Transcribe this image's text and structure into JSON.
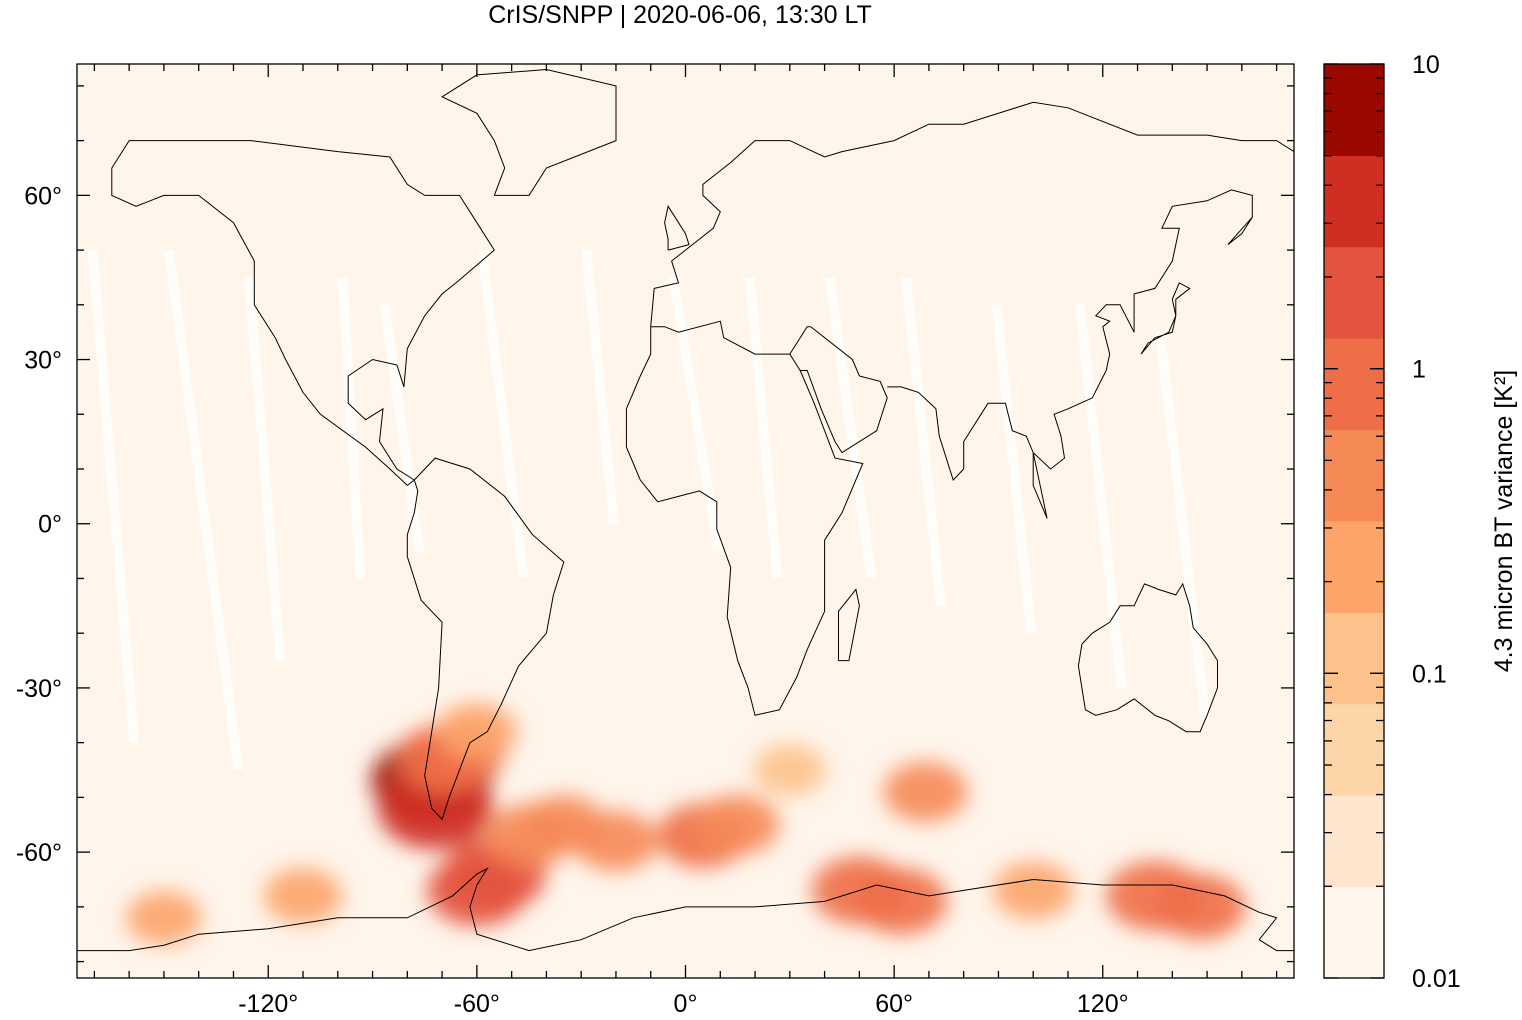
{
  "chart_data": {
    "type": "heatmap",
    "title": "CrIS/SNPP | 2020-06-06, 13:30 LT",
    "x_axis": {
      "range": [
        -175,
        175
      ],
      "ticks": [
        -120,
        -60,
        0,
        60,
        120
      ],
      "tick_labels": [
        "-120°",
        "-60°",
        "0°",
        "60°",
        "120°"
      ]
    },
    "y_axis": {
      "range": [
        -83,
        84
      ],
      "ticks": [
        60,
        30,
        0,
        -30,
        -60
      ],
      "tick_labels": [
        "60°",
        "30°",
        "0°",
        "-30°",
        "-60°"
      ]
    },
    "colorbar": {
      "label": "4.3 micron BT variance [K²]",
      "scale": "log",
      "range": [
        0.01,
        10
      ],
      "tick_values": [
        10,
        1,
        0.1,
        0.01
      ],
      "tick_labels": [
        "10",
        "1",
        "0.1",
        "0.01"
      ],
      "colors": [
        "#fff5eb",
        "#fee6ce",
        "#fdd5a8",
        "#fdc28b",
        "#fca46a",
        "#f68a56",
        "#ee6e47",
        "#e4533d",
        "#cf2e22",
        "#9a0800"
      ]
    },
    "background_value": 0.015,
    "swath_gap_color": "#ffffff",
    "hotspots": [
      {
        "lon": -73,
        "lat": -47,
        "value": 8.0
      },
      {
        "lon": -72,
        "lat": -52,
        "value": 5.0
      },
      {
        "lon": -69,
        "lat": -43,
        "value": 1.2
      },
      {
        "lon": -65,
        "lat": -42,
        "value": 0.7
      },
      {
        "lon": -60,
        "lat": -38,
        "value": 0.3
      },
      {
        "lon": -55,
        "lat": -64,
        "value": 2.0
      },
      {
        "lon": -60,
        "lat": -67,
        "value": 1.5
      },
      {
        "lon": -45,
        "lat": -57,
        "value": 0.6
      },
      {
        "lon": -35,
        "lat": -55,
        "value": 0.35
      },
      {
        "lon": -20,
        "lat": -58,
        "value": 0.4
      },
      {
        "lon": 5,
        "lat": -57,
        "value": 0.7
      },
      {
        "lon": 15,
        "lat": -55,
        "value": 0.4
      },
      {
        "lon": 50,
        "lat": -67,
        "value": 1.0
      },
      {
        "lon": 62,
        "lat": -69,
        "value": 0.8
      },
      {
        "lon": 100,
        "lat": -67,
        "value": 0.3
      },
      {
        "lon": 135,
        "lat": -68,
        "value": 1.2
      },
      {
        "lon": 148,
        "lat": -70,
        "value": 0.7
      },
      {
        "lon": -150,
        "lat": -72,
        "value": 0.2
      },
      {
        "lon": -110,
        "lat": -68,
        "value": 0.25
      },
      {
        "lon": 30,
        "lat": -45,
        "value": 0.15
      },
      {
        "lon": 69,
        "lat": -49,
        "value": 0.4
      }
    ]
  }
}
